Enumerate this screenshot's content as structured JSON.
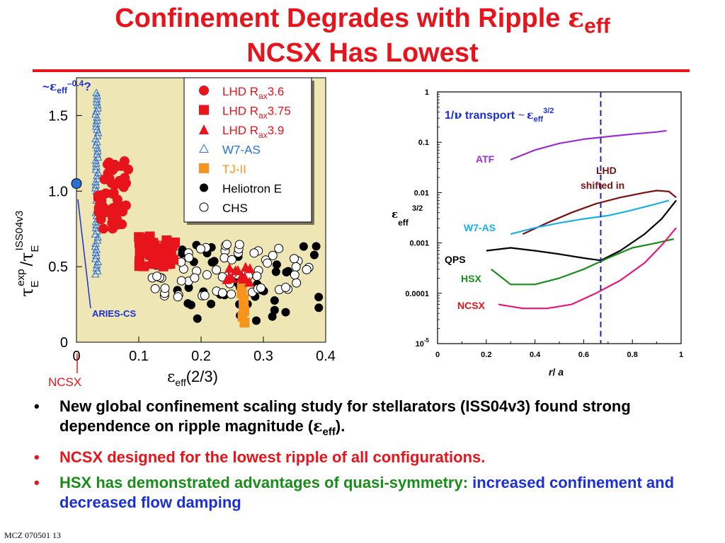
{
  "title": {
    "line1": "Confinement Degrades with Ripple ",
    "eps": "ε",
    "eps_sub": "eff",
    "line2": "NCSX Has Lowest"
  },
  "chart_data": [
    {
      "type": "scatter",
      "annotation": {
        "tilde": "~",
        "eps": "ε",
        "sub": "eff",
        "sup": "–0.4",
        "q": "?"
      },
      "xlabel": {
        "eps": "ε",
        "sub": "eff",
        "rest": "(2/3)"
      },
      "ylabel": {
        "tau": "τ",
        "sub": "E",
        "sup": "exp",
        "slash": "/",
        "tau2": "τ",
        "sub2": "E",
        "sup2": "ISS04v3"
      },
      "xlim": [
        0,
        0.4
      ],
      "ylim": [
        0,
        1.75
      ],
      "xticks": [
        "0",
        "0.1",
        "0.2",
        "0.3",
        "0.4"
      ],
      "yticks": [
        "0",
        "0.5",
        "1.0",
        "1.5"
      ],
      "ncsx_label": "NCSX",
      "ncsx_point": {
        "x": 0.0,
        "y": 0.0
      },
      "aries_label": "ARIES-CS",
      "aries_point": {
        "x": 0.0,
        "y": 1.05
      },
      "legend": [
        {
          "marker": "circle-red",
          "name": "LHD R",
          "sub": "ax",
          "rest": "3.6",
          "color": "#e8141c"
        },
        {
          "marker": "square-red",
          "name": "LHD R",
          "sub": "ax",
          "rest": "3.75",
          "color": "#e8141c"
        },
        {
          "marker": "triangle-red",
          "name": "LHD R",
          "sub": "ax",
          "rest": "3.9",
          "color": "#e8141c"
        },
        {
          "marker": "triangle-open-blue",
          "name": "W7-AS",
          "sub": "",
          "rest": "",
          "color": "#2a6fd6"
        },
        {
          "marker": "square-orange",
          "name": "TJ-II",
          "sub": "",
          "rest": "",
          "color": "#f7941d"
        },
        {
          "marker": "circle-black",
          "name": "Heliotron E",
          "sub": "",
          "rest": "",
          "color": "#000000"
        },
        {
          "marker": "circle-open",
          "name": "CHS",
          "sub": "",
          "rest": "",
          "color": "#000000"
        }
      ],
      "series": [
        {
          "name": "W7-AS",
          "marker": "triangle-open-blue",
          "x_range": [
            0.03,
            0.035
          ],
          "y_range": [
            0.45,
            1.65
          ],
          "count": 60
        },
        {
          "name": "LHD Rax3.6",
          "marker": "circle-red",
          "x_range": [
            0.035,
            0.085
          ],
          "y_range": [
            0.75,
            1.2
          ],
          "count": 60
        },
        {
          "name": "LHD Rax3.75",
          "marker": "square-red",
          "x_range": [
            0.1,
            0.16
          ],
          "y_range": [
            0.5,
            0.7
          ],
          "count": 35
        },
        {
          "name": "LHD Rax3.9",
          "marker": "triangle-red",
          "x_range": [
            0.23,
            0.28
          ],
          "y_range": [
            0.4,
            0.5
          ],
          "count": 12
        },
        {
          "name": "TJ-II",
          "marker": "square-orange",
          "x_range": [
            0.265,
            0.27
          ],
          "y_range": [
            0.13,
            0.4
          ],
          "count": 8
        },
        {
          "name": "Heliotron E",
          "marker": "circle-black",
          "x_range": [
            0.15,
            0.4
          ],
          "y_range": [
            0.13,
            0.65
          ],
          "count": 45
        },
        {
          "name": "CHS",
          "marker": "circle-open",
          "x_range": [
            0.12,
            0.38
          ],
          "y_range": [
            0.3,
            0.65
          ],
          "count": 70
        }
      ]
    },
    {
      "type": "line",
      "annotation": {
        "prefix": "1/",
        "nu": "ν",
        "mid": " transport ",
        "tilde": "~",
        "eps": "ε",
        "sub": "eff",
        "sup": "3/2"
      },
      "xlabel": {
        "r": "r",
        "slash": "/ ",
        "a": "a"
      },
      "ylabel": {
        "eps": "ε",
        "sub": "eff",
        "sup": "3/2"
      },
      "y_scale": "log",
      "xlim": [
        0,
        1
      ],
      "ylim": [
        1e-05,
        1
      ],
      "xticks": [
        "0",
        "0.2",
        "0.4",
        "0.6",
        "0.8",
        "1"
      ],
      "yticks": [
        "1",
        "0.1",
        "0.01",
        "0.001",
        "0.0001",
        "10"
      ],
      "ytick_min_sup": "-5",
      "vline_x": 0.67,
      "vline_color": "#2020c0",
      "series": [
        {
          "name": "ATF",
          "color": "#9b30d0",
          "x": [
            0.3,
            0.4,
            0.5,
            0.6,
            0.7,
            0.8,
            0.9,
            0.94
          ],
          "y": [
            0.045,
            0.07,
            0.095,
            0.115,
            0.13,
            0.145,
            0.16,
            0.17
          ]
        },
        {
          "name": "LHD shifted in",
          "label2": "shifted in",
          "color": "#7a1212",
          "x": [
            0.35,
            0.45,
            0.55,
            0.65,
            0.75,
            0.85,
            0.9,
            0.95,
            0.98
          ],
          "y": [
            0.0015,
            0.0025,
            0.004,
            0.006,
            0.008,
            0.01,
            0.011,
            0.0105,
            0.008
          ]
        },
        {
          "name": "W7-AS",
          "color": "#1ab0e8",
          "x": [
            0.3,
            0.4,
            0.5,
            0.6,
            0.7,
            0.8,
            0.9,
            0.95
          ],
          "y": [
            0.0015,
            0.002,
            0.0025,
            0.003,
            0.0035,
            0.0045,
            0.006,
            0.007
          ]
        },
        {
          "name": "QPS",
          "color": "#000000",
          "x": [
            0.2,
            0.3,
            0.4,
            0.5,
            0.6,
            0.67,
            0.75,
            0.85,
            0.92,
            0.98
          ],
          "y": [
            0.0007,
            0.0008,
            0.0007,
            0.0006,
            0.0005,
            0.00045,
            0.0007,
            0.0015,
            0.003,
            0.007
          ]
        },
        {
          "name": "HSX",
          "color": "#1a8c1a",
          "x": [
            0.22,
            0.3,
            0.4,
            0.5,
            0.6,
            0.7,
            0.8,
            0.9,
            0.97
          ],
          "y": [
            0.0003,
            0.00015,
            0.00015,
            0.0002,
            0.0003,
            0.0005,
            0.0008,
            0.001,
            0.0012
          ]
        },
        {
          "name": "NCSX",
          "color": "#e8167a",
          "x": [
            0.25,
            0.35,
            0.45,
            0.55,
            0.65,
            0.75,
            0.85,
            0.92,
            0.98
          ],
          "y": [
            6e-05,
            5e-05,
            5e-05,
            6e-05,
            0.0001,
            0.00018,
            0.0004,
            0.0009,
            0.002
          ]
        }
      ]
    }
  ],
  "bullets": [
    {
      "marker": "•",
      "marker_color": "#000000",
      "parts": [
        {
          "text": "New global confinement scaling study for stellarators (ISS04v3) found strong dependence on ripple magnitude (",
          "color": "#000000"
        },
        {
          "text": "ε",
          "color": "#000000"
        },
        {
          "text": "eff",
          "color": "#000000",
          "sub": true
        },
        {
          "text": ").",
          "color": "#000000"
        }
      ]
    },
    {
      "marker": "•",
      "marker_color": "#e8141c",
      "parts": [
        {
          "text": "NCSX designed for the lowest ripple of all configurations.",
          "color": "#e8141c"
        }
      ]
    },
    {
      "marker": "•",
      "marker_color": "#e8141c",
      "parts": [
        {
          "text": "HSX has demonstrated advantages of quasi-symmetry: ",
          "color": "#1a8c1a"
        },
        {
          "text": "increased confinement and decreased flow damping",
          "color": "#1a2fd6"
        }
      ]
    }
  ],
  "footer": "MCZ 070501  13"
}
